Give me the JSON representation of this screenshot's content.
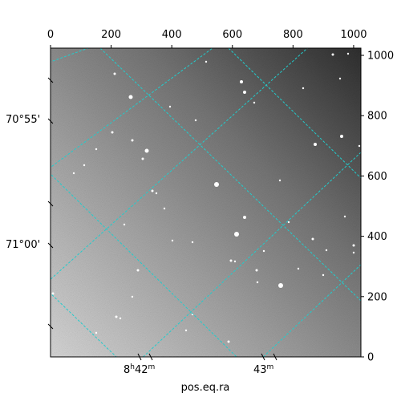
{
  "top_axis": {
    "ticks": [
      "0",
      "200",
      "400",
      "600",
      "800",
      "1000"
    ],
    "tick_values": [
      0,
      200,
      400,
      600,
      800,
      1000
    ]
  },
  "right_axis": {
    "ticks": [
      "0",
      "200",
      "400",
      "600",
      "800",
      "1000"
    ],
    "tick_values": [
      0,
      200,
      400,
      600,
      800,
      1000
    ]
  },
  "left_axis": {
    "labels": [
      "70°55'",
      "71°00'"
    ]
  },
  "bottom_axis": {
    "labels": [
      {
        "prefix": "8",
        "sup1": "h",
        "mid": "42",
        "sup2": "m"
      },
      {
        "prefix": "43",
        "sup1": "m",
        "mid": "",
        "sup2": ""
      }
    ],
    "title": "pos.eq.ra"
  },
  "image": {
    "pixel_range": [
      0,
      1024
    ],
    "grid_color": "#22cccc",
    "background_gradient": [
      "#d8d8d8",
      "#8a8a8a",
      "#5a5a5a",
      "#2a2a2a"
    ]
  }
}
